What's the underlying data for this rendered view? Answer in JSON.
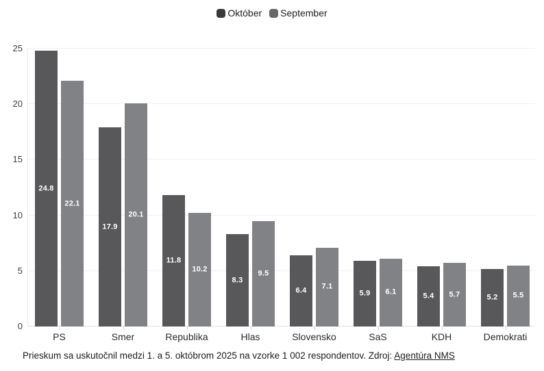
{
  "legend": {
    "items": [
      {
        "label": "Október",
        "marker_color": "#3a393b"
      },
      {
        "label": "September",
        "marker_color": "#68696c"
      }
    ]
  },
  "chart_data": {
    "type": "bar",
    "title": "",
    "categories": [
      "PS",
      "Smer",
      "Republika",
      "Hlas",
      "Slovensko",
      "SaS",
      "KDH",
      "Demokrati"
    ],
    "series": [
      {
        "name": "Október",
        "color": "#58585a",
        "values": [
          24.8,
          17.9,
          11.8,
          8.3,
          6.4,
          5.9,
          5.4,
          5.2
        ]
      },
      {
        "name": "September",
        "color": "#818286",
        "values": [
          22.1,
          20.1,
          10.2,
          9.5,
          7.1,
          6.1,
          5.7,
          5.5
        ]
      }
    ],
    "xlabel": "",
    "ylabel": "",
    "ylim": [
      0,
      25
    ],
    "yticks": [
      0,
      5,
      10,
      15,
      20,
      25
    ],
    "grid": true,
    "legend_position": "top",
    "value_labels": "inside-center-white"
  },
  "colors": {
    "gridline": "#f0f0f0",
    "baseline": "#e2e2e2",
    "axis_line": "#e7e7e7",
    "tick": "#d6d6d6",
    "axis_text": "#3f3f3f",
    "category_text": "#2b2b2b",
    "legend_text": "#1d1d1f",
    "footer_text": "#1c1c1c"
  },
  "footer": {
    "text": "Prieskum sa uskutočnil medzi 1. a 5. októbrom 2025 na vzorke 1 002 respondentov. Zdroj: ",
    "link_label": "Agentúra NMS"
  }
}
